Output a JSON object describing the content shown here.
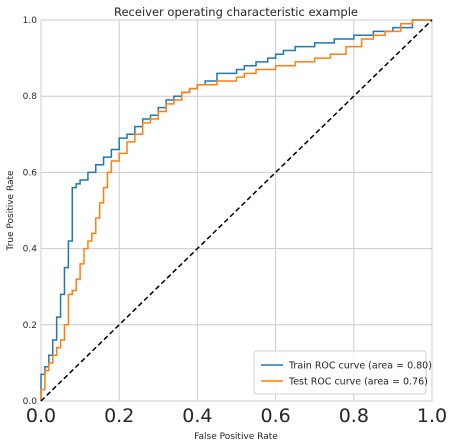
{
  "chart_data": {
    "type": "line",
    "title": "Receiver operating characteristic example",
    "xlabel": "False Positive Rate",
    "ylabel": "True Positive Rate",
    "xlim": [
      0.0,
      1.0
    ],
    "ylim": [
      0.0,
      1.0
    ],
    "x_ticks": [
      "0.0",
      "0.2",
      "0.4",
      "0.6",
      "0.8",
      "1.0"
    ],
    "y_ticks": [
      "0.0",
      "0.2",
      "0.4",
      "0.6",
      "0.8",
      "1.0"
    ],
    "grid": true,
    "legend_position": "bottom-right",
    "series": [
      {
        "name": "Train ROC curve (area = 0.80)",
        "color": "#1f77b4",
        "style": "step",
        "points": [
          [
            0.0,
            0.0
          ],
          [
            0.0,
            0.07
          ],
          [
            0.01,
            0.09
          ],
          [
            0.02,
            0.12
          ],
          [
            0.03,
            0.16
          ],
          [
            0.04,
            0.22
          ],
          [
            0.05,
            0.28
          ],
          [
            0.06,
            0.35
          ],
          [
            0.07,
            0.42
          ],
          [
            0.08,
            0.56
          ],
          [
            0.09,
            0.57
          ],
          [
            0.1,
            0.58
          ],
          [
            0.12,
            0.6
          ],
          [
            0.14,
            0.62
          ],
          [
            0.16,
            0.64
          ],
          [
            0.18,
            0.66
          ],
          [
            0.2,
            0.69
          ],
          [
            0.22,
            0.7
          ],
          [
            0.24,
            0.72
          ],
          [
            0.26,
            0.74
          ],
          [
            0.28,
            0.75
          ],
          [
            0.3,
            0.77
          ],
          [
            0.32,
            0.79
          ],
          [
            0.34,
            0.8
          ],
          [
            0.36,
            0.81
          ],
          [
            0.38,
            0.82
          ],
          [
            0.4,
            0.83
          ],
          [
            0.42,
            0.84
          ],
          [
            0.45,
            0.86
          ],
          [
            0.48,
            0.86
          ],
          [
            0.5,
            0.87
          ],
          [
            0.52,
            0.88
          ],
          [
            0.55,
            0.89
          ],
          [
            0.58,
            0.9
          ],
          [
            0.6,
            0.91
          ],
          [
            0.62,
            0.92
          ],
          [
            0.65,
            0.93
          ],
          [
            0.7,
            0.94
          ],
          [
            0.75,
            0.95
          ],
          [
            0.8,
            0.96
          ],
          [
            0.85,
            0.97
          ],
          [
            0.9,
            0.98
          ],
          [
            0.95,
            1.0
          ],
          [
            1.0,
            1.0
          ]
        ]
      },
      {
        "name": "Test ROC curve (area = 0.76)",
        "color": "#ff7f0e",
        "style": "step",
        "points": [
          [
            0.0,
            0.0
          ],
          [
            0.0,
            0.03
          ],
          [
            0.01,
            0.03
          ],
          [
            0.01,
            0.08
          ],
          [
            0.02,
            0.08
          ],
          [
            0.02,
            0.1
          ],
          [
            0.03,
            0.12
          ],
          [
            0.04,
            0.14
          ],
          [
            0.05,
            0.16
          ],
          [
            0.06,
            0.2
          ],
          [
            0.07,
            0.24
          ],
          [
            0.07,
            0.28
          ],
          [
            0.08,
            0.29
          ],
          [
            0.09,
            0.32
          ],
          [
            0.1,
            0.36
          ],
          [
            0.11,
            0.4
          ],
          [
            0.12,
            0.42
          ],
          [
            0.13,
            0.44
          ],
          [
            0.14,
            0.48
          ],
          [
            0.15,
            0.52
          ],
          [
            0.16,
            0.56
          ],
          [
            0.17,
            0.6
          ],
          [
            0.18,
            0.63
          ],
          [
            0.2,
            0.65
          ],
          [
            0.22,
            0.68
          ],
          [
            0.24,
            0.7
          ],
          [
            0.26,
            0.73
          ],
          [
            0.28,
            0.74
          ],
          [
            0.3,
            0.76
          ],
          [
            0.32,
            0.78
          ],
          [
            0.34,
            0.79
          ],
          [
            0.36,
            0.81
          ],
          [
            0.38,
            0.82
          ],
          [
            0.4,
            0.83
          ],
          [
            0.45,
            0.84
          ],
          [
            0.48,
            0.84
          ],
          [
            0.5,
            0.85
          ],
          [
            0.52,
            0.86
          ],
          [
            0.55,
            0.87
          ],
          [
            0.6,
            0.88
          ],
          [
            0.65,
            0.89
          ],
          [
            0.7,
            0.9
          ],
          [
            0.74,
            0.91
          ],
          [
            0.78,
            0.93
          ],
          [
            0.82,
            0.95
          ],
          [
            0.85,
            0.96
          ],
          [
            0.88,
            0.97
          ],
          [
            0.92,
            0.99
          ],
          [
            0.95,
            1.0
          ],
          [
            1.0,
            1.0
          ]
        ]
      },
      {
        "name": "",
        "color": "#000000",
        "style": "dashed",
        "points": [
          [
            0.0,
            0.0
          ],
          [
            1.0,
            1.0
          ]
        ]
      }
    ]
  }
}
